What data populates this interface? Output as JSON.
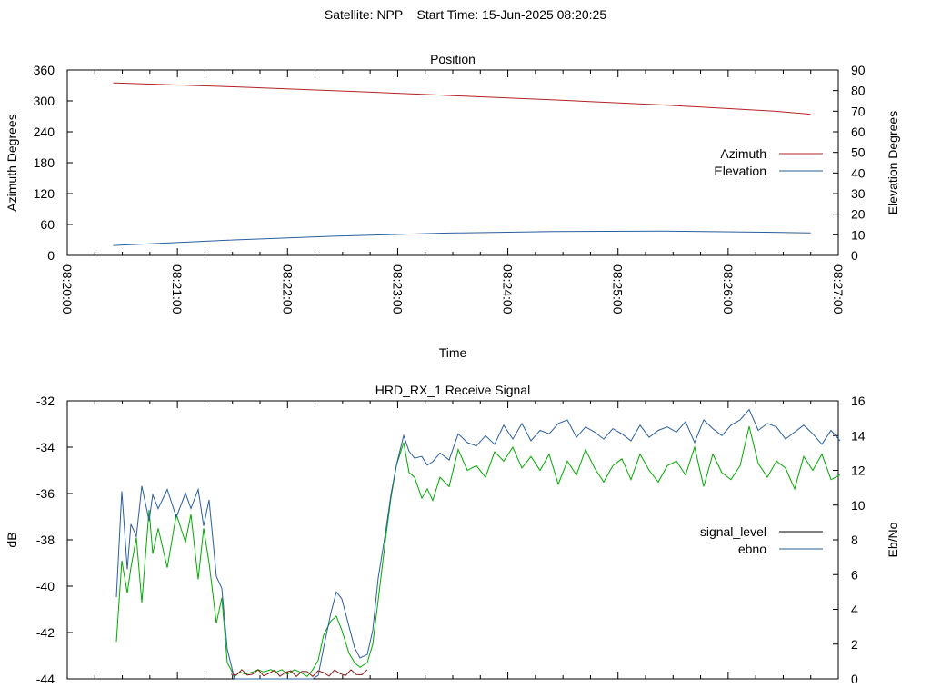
{
  "page_title": {
    "satellite": "Satellite: NPP",
    "start_time": "Start Time: 15-Jun-2025 08:20:25"
  },
  "chart_data": [
    {
      "type": "line",
      "title": "Position",
      "xlabel": "Time",
      "ylabel_left": "Azimuth Degrees",
      "ylabel_right": "Elevation Degrees",
      "x_ticks": [
        "08:20:00",
        "08:21:00",
        "08:22:00",
        "08:23:00",
        "08:24:00",
        "08:25:00",
        "08:26:00",
        "08:27:00"
      ],
      "x_range": [
        "08:20:00",
        "08:27:00"
      ],
      "ylim_left": [
        0,
        360
      ],
      "ylim_right": [
        0,
        90
      ],
      "y_ticks_left": [
        0,
        60,
        120,
        180,
        240,
        300,
        360
      ],
      "y_ticks_right": [
        0,
        10,
        20,
        30,
        40,
        50,
        60,
        70,
        80,
        90
      ],
      "grid": false,
      "legend": "right",
      "series": [
        {
          "name": "Azimuth",
          "axis": "left",
          "color": "#b22222",
          "x": [
            "08:20:25",
            "08:21:25",
            "08:22:25",
            "08:23:25",
            "08:24:25",
            "08:25:25",
            "08:26:25",
            "08:26:45"
          ],
          "values": [
            335,
            328,
            320,
            311,
            302,
            292,
            280,
            274
          ]
        },
        {
          "name": "Elevation",
          "axis": "right",
          "color": "#2a5d9e",
          "x": [
            "08:20:25",
            "08:21:25",
            "08:22:25",
            "08:23:25",
            "08:24:25",
            "08:25:25",
            "08:26:25",
            "08:26:45"
          ],
          "values": [
            4.8,
            7.3,
            9.3,
            10.8,
            11.6,
            11.8,
            11.2,
            10.9
          ]
        }
      ]
    },
    {
      "type": "line",
      "title": "HRD_RX_1 Receive Signal",
      "xlabel": "",
      "ylabel_left": "dB",
      "ylabel_right": "Eb/No",
      "ylim_left": [
        -44,
        -32
      ],
      "ylim_right": [
        0,
        16
      ],
      "y_ticks_left": [
        -44,
        -42,
        -40,
        -38,
        -36,
        -34,
        -32
      ],
      "y_ticks_right": [
        0,
        2,
        4,
        6,
        8,
        10,
        12,
        14,
        16
      ],
      "grid": false,
      "legend": "right",
      "series": [
        {
          "name": "signal_level",
          "axis": "left",
          "color": "#00aa00",
          "legend_color": "#000000",
          "x": [
            0.2,
            0.5,
            0.8,
            1.0,
            1.3,
            1.6,
            2.0,
            2.2,
            2.5,
            3.0,
            3.5,
            4.0,
            4.3,
            4.7,
            5.0,
            5.3,
            5.7,
            6.0,
            6.3,
            6.7,
            7.0,
            7.3,
            7.7,
            8.0,
            8.3,
            8.7,
            9.0,
            9.3,
            9.6,
            10.0,
            10.3,
            10.7,
            11.0,
            11.3,
            11.6,
            12.0,
            12.3,
            12.6,
            13.0,
            13.3,
            13.6,
            14.0,
            14.3,
            14.6,
            15.0,
            15.3,
            15.6,
            16.0,
            16.3,
            16.6,
            17.0,
            17.3,
            17.6,
            18.0,
            18.5,
            19.0,
            19.5,
            20.0,
            20.5,
            21.0,
            21.5,
            22.0,
            22.5,
            23.0,
            23.5,
            24.0,
            24.5,
            25.0,
            25.5,
            26.0,
            26.5,
            27.0,
            27.5,
            28.0,
            28.5,
            29.0,
            29.5,
            30.0,
            30.5,
            31.0,
            31.5,
            32.0,
            32.5,
            33.0,
            33.5,
            34.0,
            34.5,
            35.0,
            35.5,
            36.0,
            36.5,
            37.0,
            37.5,
            38.0,
            38.5,
            39.0,
            39.5,
            40.0
          ],
          "values": [
            -42.4,
            -38.9,
            -40.3,
            -39.2,
            -37.9,
            -40.7,
            -36.7,
            -38.6,
            -37.5,
            -39.2,
            -36.9,
            -38.1,
            -36.9,
            -39.7,
            -37.5,
            -39.0,
            -41.6,
            -40.5,
            -43.3,
            -43.9,
            -43.7,
            -43.8,
            -43.7,
            -43.6,
            -43.7,
            -43.6,
            -43.7,
            -43.6,
            -43.8,
            -43.6,
            -43.7,
            -43.9,
            -43.6,
            -43.2,
            -42.1,
            -41.5,
            -41.3,
            -41.9,
            -42.9,
            -43.3,
            -43.5,
            -43.3,
            -42.5,
            -40.6,
            -38.0,
            -36.2,
            -34.8,
            -33.8,
            -35.1,
            -35.3,
            -36.2,
            -35.8,
            -36.3,
            -35.3,
            -35.7,
            -34.1,
            -35.0,
            -34.8,
            -35.3,
            -34.2,
            -34.6,
            -34.0,
            -34.9,
            -34.4,
            -35.0,
            -34.3,
            -35.6,
            -34.6,
            -35.2,
            -34.1,
            -34.9,
            -35.5,
            -34.8,
            -34.5,
            -35.4,
            -34.3,
            -35.0,
            -35.5,
            -34.8,
            -34.6,
            -35.2,
            -34.0,
            -35.7,
            -34.3,
            -35.1,
            -35.4,
            -34.8,
            -33.1,
            -34.7,
            -35.3,
            -34.6,
            -34.9,
            -35.8,
            -34.4,
            -35.0,
            -34.3,
            -35.4,
            -35.2
          ]
        },
        {
          "name": "ebno",
          "axis": "right",
          "color": "#2a5d9e",
          "x": [
            0.2,
            0.5,
            0.8,
            1.0,
            1.3,
            1.6,
            2.0,
            2.2,
            2.5,
            3.0,
            3.5,
            4.0,
            4.3,
            4.7,
            5.0,
            5.3,
            5.7,
            6.0,
            6.3,
            6.7,
            7.0,
            7.3,
            7.7,
            8.0,
            8.3,
            8.7,
            9.0,
            9.3,
            9.6,
            10.0,
            10.3,
            10.7,
            11.0,
            11.3,
            11.6,
            12.0,
            12.3,
            12.6,
            13.0,
            13.3,
            13.6,
            14.0,
            14.3,
            14.6,
            15.0,
            15.3,
            15.6,
            16.0,
            16.3,
            16.6,
            17.0,
            17.3,
            17.6,
            18.0,
            18.5,
            19.0,
            19.5,
            20.0,
            20.5,
            21.0,
            21.5,
            22.0,
            22.5,
            23.0,
            23.5,
            24.0,
            24.5,
            25.0,
            25.5,
            26.0,
            26.5,
            27.0,
            27.5,
            28.0,
            28.5,
            29.0,
            29.5,
            30.0,
            30.5,
            31.0,
            31.5,
            32.0,
            32.5,
            33.0,
            33.5,
            34.0,
            34.5,
            35.0,
            35.5,
            36.0,
            36.5,
            37.0,
            37.5,
            38.0,
            38.5,
            39.0,
            39.5,
            40.0
          ],
          "values": [
            4.7,
            10.8,
            6.3,
            8.9,
            8.2,
            11.1,
            9.1,
            10.6,
            9.8,
            10.9,
            9.3,
            10.7,
            9.8,
            10.9,
            8.8,
            10.3,
            5.9,
            5.2,
            1.7,
            -0.3,
            -0.5,
            -0.6,
            -0.5,
            -0.6,
            -0.5,
            -0.6,
            -0.5,
            -0.6,
            -0.5,
            -0.6,
            -0.5,
            -0.6,
            -0.5,
            0.2,
            1.8,
            3.8,
            5.0,
            4.6,
            3.0,
            1.8,
            1.2,
            1.4,
            2.8,
            5.8,
            8.4,
            10.6,
            12.3,
            14.0,
            13.1,
            12.7,
            12.8,
            12.3,
            12.5,
            13.0,
            12.6,
            14.1,
            13.6,
            13.4,
            14.0,
            13.5,
            14.6,
            13.8,
            14.7,
            13.7,
            14.3,
            14.1,
            14.7,
            14.9,
            13.9,
            14.5,
            14.2,
            13.8,
            14.4,
            14.1,
            13.7,
            14.6,
            13.9,
            14.3,
            14.5,
            14.2,
            14.8,
            13.6,
            14.9,
            14.4,
            14.0,
            14.6,
            14.9,
            15.5,
            14.3,
            14.7,
            14.5,
            13.8,
            14.2,
            14.6,
            14.1,
            13.5,
            14.3,
            13.7
          ]
        }
      ]
    }
  ]
}
